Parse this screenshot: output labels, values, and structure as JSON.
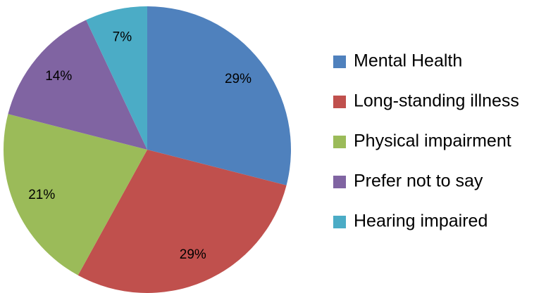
{
  "chart_data": {
    "type": "pie",
    "categories": [
      "Mental Health",
      "Long-standing illness",
      "Physical impairment",
      "Prefer not to say",
      "Hearing impaired"
    ],
    "values": [
      29,
      29,
      21,
      14,
      7
    ],
    "value_labels": [
      "29%",
      "29%",
      "21%",
      "14%",
      "7%"
    ],
    "colors": [
      "#4f81bd",
      "#c0504d",
      "#9bbb59",
      "#8064a2",
      "#4bacc6"
    ],
    "legend": "right"
  }
}
